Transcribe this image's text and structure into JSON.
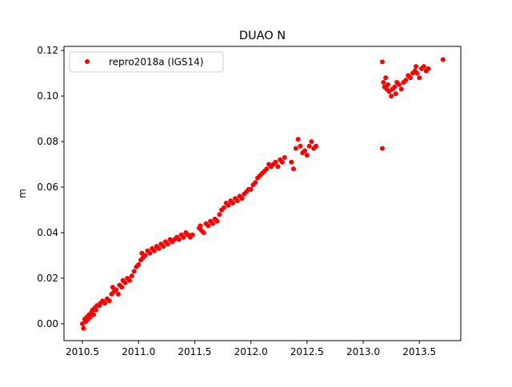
{
  "chart_data": {
    "type": "scatter",
    "title": "DUAO N",
    "xlabel": "",
    "ylabel": "m",
    "xlim": [
      2010.336,
      2013.869
    ],
    "ylim": [
      -0.0074,
      0.1218
    ],
    "xticks": [
      2010.5,
      2011.0,
      2011.5,
      2012.0,
      2012.5,
      2013.0,
      2013.5
    ],
    "xtick_labels": [
      "2010.5",
      "2011.0",
      "2011.5",
      "2012.0",
      "2012.5",
      "2013.0",
      "2013.5"
    ],
    "yticks": [
      0.0,
      0.02,
      0.04,
      0.06,
      0.08,
      0.1,
      0.12
    ],
    "ytick_labels": [
      "0.00",
      "0.02",
      "0.04",
      "0.06",
      "0.08",
      "0.10",
      "0.12"
    ],
    "grid": false,
    "legend_placement": "upper-left",
    "series": [
      {
        "name": "repro2018a (IGS14)",
        "color": "#ff0000",
        "marker": "circle",
        "points": [
          [
            2010.5,
            0.0
          ],
          [
            2010.51,
            -0.002
          ],
          [
            2010.52,
            0.002
          ],
          [
            2010.53,
            0.001
          ],
          [
            2010.54,
            0.003
          ],
          [
            2010.55,
            0.002
          ],
          [
            2010.56,
            0.004
          ],
          [
            2010.57,
            0.003
          ],
          [
            2010.58,
            0.005
          ],
          [
            2010.59,
            0.006
          ],
          [
            2010.6,
            0.004
          ],
          [
            2010.61,
            0.007
          ],
          [
            2010.62,
            0.006
          ],
          [
            2010.63,
            0.008
          ],
          [
            2010.65,
            0.008
          ],
          [
            2010.66,
            0.009
          ],
          [
            2010.68,
            0.01
          ],
          [
            2010.7,
            0.009
          ],
          [
            2010.72,
            0.011
          ],
          [
            2010.74,
            0.01
          ],
          [
            2010.76,
            0.013
          ],
          [
            2010.77,
            0.016
          ],
          [
            2010.78,
            0.014
          ],
          [
            2010.8,
            0.015
          ],
          [
            2010.82,
            0.013
          ],
          [
            2010.83,
            0.017
          ],
          [
            2010.85,
            0.016
          ],
          [
            2010.86,
            0.019
          ],
          [
            2010.88,
            0.018
          ],
          [
            2010.9,
            0.02
          ],
          [
            2010.92,
            0.019
          ],
          [
            2010.94,
            0.021
          ],
          [
            2010.96,
            0.023
          ],
          [
            2010.98,
            0.025
          ],
          [
            2011.0,
            0.026
          ],
          [
            2011.02,
            0.028
          ],
          [
            2011.03,
            0.031
          ],
          [
            2011.04,
            0.029
          ],
          [
            2011.06,
            0.03
          ],
          [
            2011.08,
            0.032
          ],
          [
            2011.1,
            0.031
          ],
          [
            2011.12,
            0.033
          ],
          [
            2011.14,
            0.032
          ],
          [
            2011.16,
            0.034
          ],
          [
            2011.18,
            0.033
          ],
          [
            2011.2,
            0.035
          ],
          [
            2011.22,
            0.034
          ],
          [
            2011.24,
            0.036
          ],
          [
            2011.26,
            0.035
          ],
          [
            2011.28,
            0.037
          ],
          [
            2011.3,
            0.036
          ],
          [
            2011.32,
            0.037
          ],
          [
            2011.34,
            0.038
          ],
          [
            2011.36,
            0.037
          ],
          [
            2011.38,
            0.039
          ],
          [
            2011.4,
            0.038
          ],
          [
            2011.42,
            0.04
          ],
          [
            2011.44,
            0.039
          ],
          [
            2011.46,
            0.038
          ],
          [
            2011.48,
            0.039
          ],
          [
            2011.54,
            0.042
          ],
          [
            2011.55,
            0.043
          ],
          [
            2011.56,
            0.041
          ],
          [
            2011.58,
            0.04
          ],
          [
            2011.6,
            0.044
          ],
          [
            2011.62,
            0.043
          ],
          [
            2011.64,
            0.045
          ],
          [
            2011.66,
            0.044
          ],
          [
            2011.68,
            0.046
          ],
          [
            2011.7,
            0.045
          ],
          [
            2011.72,
            0.048
          ],
          [
            2011.74,
            0.05
          ],
          [
            2011.76,
            0.051
          ],
          [
            2011.78,
            0.053
          ],
          [
            2011.8,
            0.052
          ],
          [
            2011.82,
            0.054
          ],
          [
            2011.84,
            0.053
          ],
          [
            2011.86,
            0.055
          ],
          [
            2011.88,
            0.054
          ],
          [
            2011.9,
            0.056
          ],
          [
            2011.92,
            0.055
          ],
          [
            2011.94,
            0.057
          ],
          [
            2011.96,
            0.058
          ],
          [
            2011.98,
            0.059
          ],
          [
            2012.0,
            0.059
          ],
          [
            2012.02,
            0.061
          ],
          [
            2012.04,
            0.062
          ],
          [
            2012.06,
            0.064
          ],
          [
            2012.08,
            0.065
          ],
          [
            2012.1,
            0.066
          ],
          [
            2012.12,
            0.067
          ],
          [
            2012.14,
            0.068
          ],
          [
            2012.16,
            0.07
          ],
          [
            2012.18,
            0.069
          ],
          [
            2012.2,
            0.07
          ],
          [
            2012.22,
            0.071
          ],
          [
            2012.24,
            0.069
          ],
          [
            2012.26,
            0.072
          ],
          [
            2012.28,
            0.071
          ],
          [
            2012.3,
            0.073
          ],
          [
            2012.36,
            0.071
          ],
          [
            2012.38,
            0.068
          ],
          [
            2012.4,
            0.077
          ],
          [
            2012.42,
            0.081
          ],
          [
            2012.44,
            0.078
          ],
          [
            2012.46,
            0.075
          ],
          [
            2012.48,
            0.076
          ],
          [
            2012.5,
            0.074
          ],
          [
            2012.52,
            0.078
          ],
          [
            2012.54,
            0.08
          ],
          [
            2012.56,
            0.077
          ],
          [
            2012.58,
            0.078
          ],
          [
            2013.17,
            0.115
          ],
          [
            2013.17,
            0.077
          ],
          [
            2013.18,
            0.106
          ],
          [
            2013.19,
            0.104
          ],
          [
            2013.2,
            0.108
          ],
          [
            2013.21,
            0.103
          ],
          [
            2013.22,
            0.105
          ],
          [
            2013.23,
            0.102
          ],
          [
            2013.25,
            0.1
          ],
          [
            2013.26,
            0.103
          ],
          [
            2013.28,
            0.104
          ],
          [
            2013.29,
            0.101
          ],
          [
            2013.3,
            0.106
          ],
          [
            2013.32,
            0.105
          ],
          [
            2013.34,
            0.103
          ],
          [
            2013.36,
            0.106
          ],
          [
            2013.38,
            0.107
          ],
          [
            2013.4,
            0.109
          ],
          [
            2013.42,
            0.108
          ],
          [
            2013.44,
            0.11
          ],
          [
            2013.46,
            0.111
          ],
          [
            2013.47,
            0.113
          ],
          [
            2013.48,
            0.11
          ],
          [
            2013.5,
            0.108
          ],
          [
            2013.52,
            0.112
          ],
          [
            2013.54,
            0.113
          ],
          [
            2013.56,
            0.111
          ],
          [
            2013.58,
            0.112
          ],
          [
            2013.71,
            0.116
          ]
        ]
      }
    ]
  }
}
